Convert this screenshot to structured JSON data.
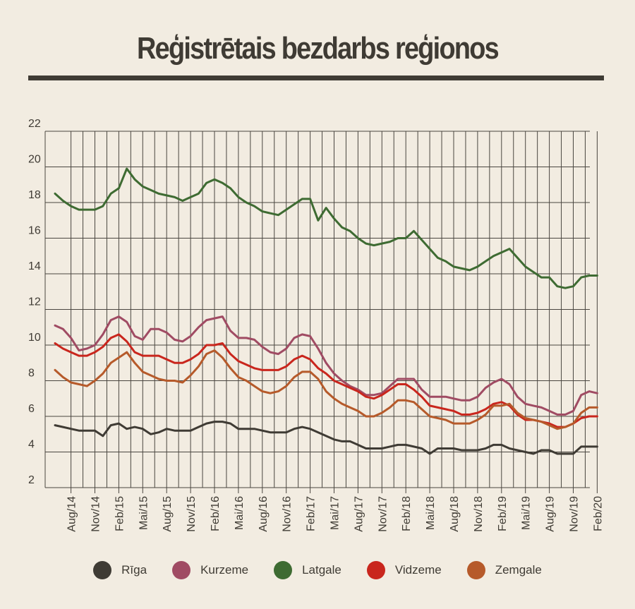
{
  "chart_data": {
    "type": "line",
    "title": "Reģistrētais bezdarbs reģionos",
    "xlabel": "",
    "ylabel": "",
    "ylim": [
      2,
      22
    ],
    "yticks": [
      2,
      4,
      6,
      8,
      10,
      12,
      14,
      16,
      18,
      20,
      22
    ],
    "grid": true,
    "legend_position": "bottom",
    "start_month": "2014-06",
    "x_tick_labels": [
      "Aug/14",
      "Nov/14",
      "Feb/15",
      "Mai/15",
      "Aug/15",
      "Nov/15",
      "Feb/16",
      "Mai/16",
      "Aug/16",
      "Nov/16",
      "Feb/17",
      "Mai/17",
      "Aug/17",
      "Nov/17",
      "Feb/18",
      "Mai/18",
      "Aug/18",
      "Nov/18",
      "Feb/19",
      "Mai/19",
      "Aug/19",
      "Nov/19",
      "Feb/20"
    ],
    "series": [
      {
        "name": "Rīga",
        "color": "#3f3b34",
        "values": [
          5.5,
          5.4,
          5.3,
          5.2,
          5.2,
          5.2,
          4.9,
          5.5,
          5.6,
          5.3,
          5.4,
          5.3,
          5.0,
          5.1,
          5.3,
          5.2,
          5.2,
          5.2,
          5.4,
          5.6,
          5.7,
          5.7,
          5.6,
          5.3,
          5.3,
          5.3,
          5.2,
          5.1,
          5.1,
          5.1,
          5.3,
          5.4,
          5.3,
          5.1,
          4.9,
          4.7,
          4.6,
          4.6,
          4.4,
          4.2,
          4.2,
          4.2,
          4.3,
          4.4,
          4.4,
          4.3,
          4.2,
          3.9,
          4.2,
          4.2,
          4.2,
          4.1,
          4.1,
          4.1,
          4.2,
          4.4,
          4.4,
          4.2,
          4.1,
          4.0,
          3.9,
          4.1,
          4.1,
          3.9,
          3.9,
          3.9,
          4.3,
          4.3,
          4.3
        ]
      },
      {
        "name": "Kurzeme",
        "color": "#a04b63",
        "values": [
          11.1,
          10.9,
          10.4,
          9.7,
          9.8,
          10.0,
          10.6,
          11.4,
          11.6,
          11.3,
          10.5,
          10.3,
          10.9,
          10.9,
          10.7,
          10.3,
          10.2,
          10.5,
          11.0,
          11.4,
          11.5,
          11.6,
          10.8,
          10.4,
          10.4,
          10.3,
          9.9,
          9.6,
          9.5,
          9.8,
          10.4,
          10.6,
          10.5,
          9.8,
          9.0,
          8.4,
          8.0,
          7.7,
          7.5,
          7.2,
          7.2,
          7.3,
          7.7,
          8.1,
          8.1,
          8.1,
          7.5,
          7.1,
          7.1,
          7.1,
          7.0,
          6.9,
          6.9,
          7.1,
          7.6,
          7.9,
          8.1,
          7.8,
          7.1,
          6.7,
          6.6,
          6.5,
          6.3,
          6.1,
          6.1,
          6.3,
          7.2,
          7.4,
          7.3
        ]
      },
      {
        "name": "Latgale",
        "color": "#3e6b32",
        "values": [
          18.5,
          18.1,
          17.8,
          17.6,
          17.6,
          17.6,
          17.8,
          18.5,
          18.8,
          19.9,
          19.3,
          18.9,
          18.7,
          18.5,
          18.4,
          18.3,
          18.1,
          18.3,
          18.5,
          19.1,
          19.3,
          19.1,
          18.8,
          18.3,
          18.0,
          17.8,
          17.5,
          17.4,
          17.3,
          17.6,
          17.9,
          18.2,
          18.2,
          17.0,
          17.7,
          17.1,
          16.6,
          16.4,
          16.0,
          15.7,
          15.6,
          15.7,
          15.8,
          16.0,
          16.0,
          16.4,
          15.9,
          15.4,
          14.9,
          14.7,
          14.4,
          14.3,
          14.2,
          14.4,
          14.7,
          15.0,
          15.2,
          15.4,
          14.9,
          14.4,
          14.1,
          13.8,
          13.8,
          13.3,
          13.2,
          13.3,
          13.8,
          13.9,
          13.9
        ]
      },
      {
        "name": "Vidzeme",
        "color": "#c9261d",
        "values": [
          10.1,
          9.8,
          9.6,
          9.4,
          9.4,
          9.6,
          9.9,
          10.4,
          10.6,
          10.2,
          9.6,
          9.4,
          9.4,
          9.4,
          9.2,
          9.0,
          9.0,
          9.2,
          9.5,
          10.0,
          10.0,
          10.1,
          9.5,
          9.1,
          8.9,
          8.7,
          8.6,
          8.6,
          8.6,
          8.8,
          9.2,
          9.4,
          9.2,
          8.7,
          8.4,
          8.0,
          7.8,
          7.6,
          7.4,
          7.1,
          7.0,
          7.2,
          7.5,
          7.8,
          7.8,
          7.5,
          7.1,
          6.6,
          6.5,
          6.4,
          6.3,
          6.1,
          6.1,
          6.2,
          6.4,
          6.7,
          6.8,
          6.6,
          6.1,
          5.8,
          5.8,
          5.7,
          5.6,
          5.4,
          5.4,
          5.6,
          5.9,
          6.0,
          6.0
        ]
      },
      {
        "name": "Zemgale",
        "color": "#b65a2a",
        "values": [
          8.6,
          8.2,
          7.9,
          7.8,
          7.7,
          8.0,
          8.4,
          9.0,
          9.3,
          9.6,
          9.0,
          8.5,
          8.3,
          8.1,
          8.0,
          8.0,
          7.9,
          8.3,
          8.8,
          9.5,
          9.7,
          9.3,
          8.7,
          8.2,
          8.0,
          7.7,
          7.4,
          7.3,
          7.4,
          7.7,
          8.2,
          8.5,
          8.5,
          8.1,
          7.4,
          7.0,
          6.7,
          6.5,
          6.3,
          6.0,
          6.0,
          6.2,
          6.5,
          6.9,
          6.9,
          6.8,
          6.4,
          6.0,
          5.9,
          5.8,
          5.6,
          5.6,
          5.6,
          5.8,
          6.1,
          6.6,
          6.6,
          6.7,
          6.2,
          5.9,
          5.8,
          5.7,
          5.5,
          5.3,
          5.4,
          5.6,
          6.2,
          6.5,
          6.5
        ]
      }
    ]
  }
}
